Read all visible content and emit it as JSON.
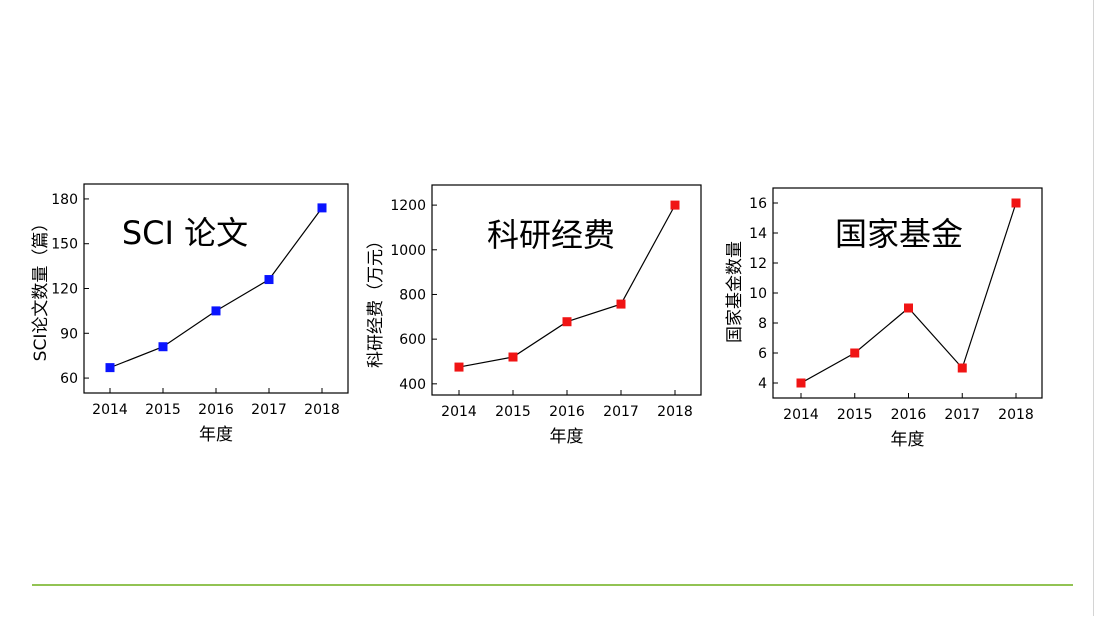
{
  "chart_data": [
    {
      "type": "line",
      "title": "SCI 论文",
      "xlabel": "年度",
      "ylabel": "SCI论文数量（篇）",
      "categories": [
        "2014",
        "2015",
        "2016",
        "2017",
        "2018"
      ],
      "series": [
        {
          "values": [
            67,
            81,
            105,
            126,
            174
          ],
          "color": "#0a14ff"
        }
      ],
      "ylim": [
        50,
        190
      ],
      "yticks": [
        60,
        90,
        120,
        150,
        180
      ],
      "grid": false,
      "legend": "none",
      "marker": "square"
    },
    {
      "type": "line",
      "title": "科研经费",
      "xlabel": "年度",
      "ylabel": "科研经费（万元）",
      "categories": [
        "2014",
        "2015",
        "2016",
        "2017",
        "2018"
      ],
      "series": [
        {
          "values": [
            475,
            520,
            678,
            757,
            1200
          ],
          "color": "#f01414"
        }
      ],
      "ylim": [
        350,
        1290
      ],
      "yticks": [
        400,
        600,
        800,
        1000,
        1200
      ],
      "grid": false,
      "legend": "none",
      "marker": "square"
    },
    {
      "type": "line",
      "title": "国家基金",
      "xlabel": "年度",
      "ylabel": "国家基金数量",
      "categories": [
        "2014",
        "2015",
        "2016",
        "2017",
        "2018"
      ],
      "series": [
        {
          "values": [
            4,
            6,
            9,
            5,
            16
          ],
          "color": "#f01414"
        }
      ],
      "ylim": [
        3,
        17
      ],
      "yticks": [
        4,
        6,
        8,
        10,
        12,
        14,
        16
      ],
      "grid": false,
      "legend": "none",
      "marker": "square"
    }
  ]
}
